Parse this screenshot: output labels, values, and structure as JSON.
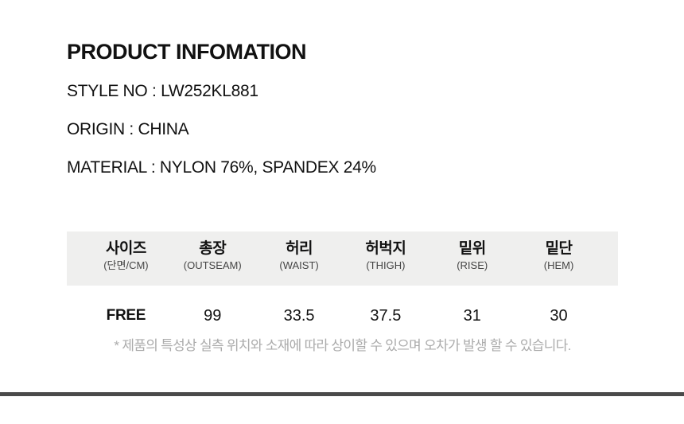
{
  "page": {
    "title": "PRODUCT INFOMATION"
  },
  "product_info": {
    "style_no": "STYLE NO : LW252KL881",
    "origin": "ORIGIN : CHINA",
    "material": "MATERIAL : NYLON 76%, SPANDEX 24%"
  },
  "size_table": {
    "columns": [
      {
        "kr": "사이즈",
        "en": "(단면/CM)"
      },
      {
        "kr": "총장",
        "en": "(OUTSEAM)"
      },
      {
        "kr": "허리",
        "en": "(WAIST)"
      },
      {
        "kr": "허벅지",
        "en": "(THIGH)"
      },
      {
        "kr": "밑위",
        "en": "(RISE)"
      },
      {
        "kr": "밑단",
        "en": "(HEM)"
      }
    ],
    "rows": [
      {
        "size": "FREE",
        "outseam": "99",
        "waist": "33.5",
        "thigh": "37.5",
        "rise": "31",
        "hem": "30"
      }
    ]
  },
  "note": "* 제품의 특성상 실측 위치와 소재에 따라 상이할 수 있으며 오차가 발생 할 수 있습니다.",
  "colors": {
    "text": "#111111",
    "subtext": "#454545",
    "note_text": "#ababab",
    "header_bg": "#efefee",
    "divider": "#4a4a4a"
  }
}
